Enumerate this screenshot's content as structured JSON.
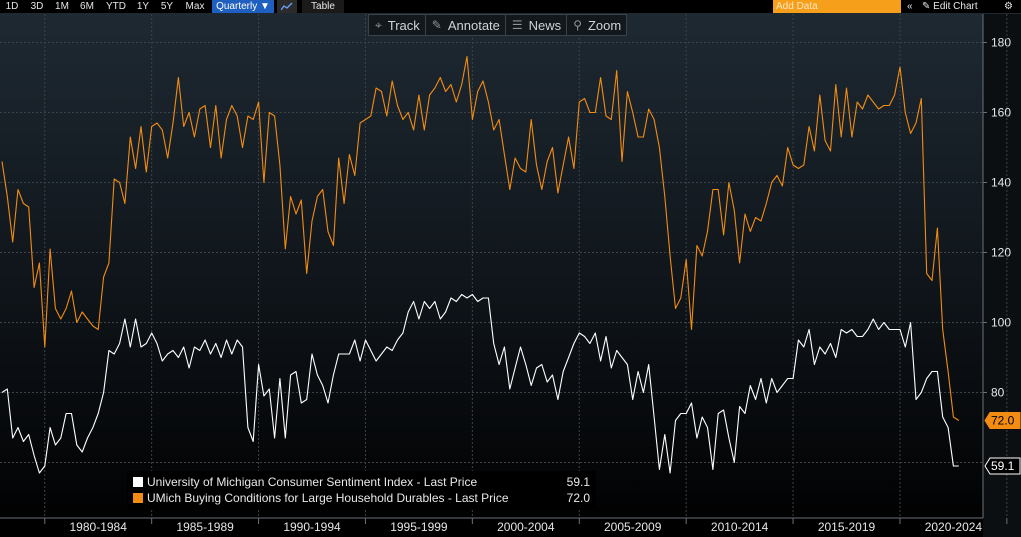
{
  "toolbar": {
    "ranges": [
      "1D",
      "3D",
      "1M",
      "6M",
      "YTD",
      "1Y",
      "5Y",
      "Max"
    ],
    "frequency": "Quarterly ▼",
    "chart_icon": "line-chart-icon",
    "table_label": "Table",
    "add_data_placeholder": "Add Data",
    "collapse_glyph": "«",
    "edit_chart_label": "✎ Edit Chart",
    "settings_glyph": "⚙"
  },
  "plot_toolbar": {
    "items": [
      {
        "icon": "crosshair-icon",
        "glyph": "⌖",
        "label": "Track"
      },
      {
        "icon": "pencil-icon",
        "glyph": "✎",
        "label": "Annotate"
      },
      {
        "icon": "news-icon",
        "glyph": "☰",
        "label": "News"
      },
      {
        "icon": "magnifier-icon",
        "glyph": "⚲",
        "label": "Zoom"
      }
    ]
  },
  "legend": {
    "items": [
      {
        "label": "University of Michigan Consumer Sentiment Index - Last Price",
        "value": "59.1",
        "color": "#ffffff"
      },
      {
        "label": "UMich Buying Conditions for Large Household Durables - Last Price",
        "value": "72.0",
        "color": "#f28c12"
      }
    ]
  },
  "chart_data": {
    "type": "line",
    "x_type": "quarterly",
    "start": "1978 Q1",
    "x_tick_labels": [
      "1980-1984",
      "1985-1989",
      "1990-1994",
      "1995-1999",
      "2000-2004",
      "2005-2009",
      "2010-2014",
      "2015-2019",
      "2020-2024"
    ],
    "y_axis": {
      "ticks": [
        80,
        100,
        120,
        140,
        160,
        180
      ],
      "range": [
        60,
        185
      ],
      "side": "right"
    },
    "grid": true,
    "series": [
      {
        "name": "University of Michigan Consumer Sentiment Index - Last Price",
        "color": "#ffffff",
        "last_value_label": "59.1",
        "values": [
          80,
          81,
          67,
          70,
          66,
          68,
          62,
          57,
          59,
          70,
          65,
          67,
          74,
          74,
          65,
          63,
          67,
          70,
          74,
          80,
          92,
          91,
          94,
          101,
          93,
          101,
          93,
          94,
          97,
          94,
          89,
          91,
          92,
          90,
          93,
          87,
          93,
          92,
          95,
          91,
          94,
          90,
          95,
          91,
          95,
          93,
          70,
          66,
          88,
          79,
          81,
          67,
          84,
          67,
          85,
          86,
          77,
          78,
          91,
          85,
          82,
          77,
          85,
          91,
          91,
          91,
          95,
          89,
          95,
          92,
          89,
          91,
          93,
          92,
          95,
          97,
          103,
          106,
          101,
          106,
          104,
          106,
          101,
          103,
          107,
          106,
          108,
          107,
          108,
          106,
          107,
          107,
          94,
          88,
          93,
          81,
          87,
          93,
          88,
          82,
          87,
          88,
          83,
          85,
          78,
          86,
          90,
          94,
          97,
          96,
          94,
          97,
          89,
          96,
          87,
          92,
          90,
          88,
          78,
          86,
          80,
          88,
          73,
          58,
          68,
          57,
          72,
          74,
          74,
          77,
          67,
          73,
          70,
          58,
          74,
          75,
          67,
          60,
          76,
          74,
          82,
          78,
          84,
          77,
          84,
          80,
          82,
          84,
          84,
          95,
          93,
          98,
          88,
          93,
          91,
          94,
          90,
          98,
          97,
          98,
          96,
          96,
          98,
          101,
          98,
          100,
          98,
          98,
          98,
          93,
          100,
          78,
          80,
          84,
          86,
          86,
          73,
          70,
          59,
          59
        ]
      },
      {
        "name": "UMich Buying Conditions for Large Household Durables - Last Price",
        "color": "#f28c12",
        "last_value_label": "72.0",
        "values": [
          146,
          136,
          123,
          138,
          134,
          133,
          110,
          117,
          93,
          121,
          104,
          101,
          104,
          109,
          100,
          103,
          101,
          99,
          98,
          113,
          117,
          141,
          140,
          134,
          153,
          144,
          156,
          143,
          156,
          157,
          155,
          147,
          157,
          170,
          156,
          160,
          153,
          161,
          162,
          150,
          162,
          147,
          158,
          162,
          159,
          150,
          159,
          158,
          163,
          140,
          160,
          159,
          145,
          121,
          136,
          131,
          135,
          114,
          129,
          136,
          138,
          126,
          122,
          147,
          134,
          148,
          142,
          157,
          158,
          159,
          167,
          166,
          159,
          169,
          162,
          158,
          160,
          155,
          165,
          155,
          165,
          167,
          170,
          166,
          168,
          163,
          168,
          176,
          158,
          166,
          169,
          163,
          155,
          158,
          148,
          138,
          147,
          144,
          143,
          158,
          145,
          138,
          146,
          150,
          137,
          145,
          153,
          144,
          163,
          164,
          160,
          160,
          170,
          159,
          158,
          172,
          146,
          166,
          160,
          153,
          153,
          161,
          158,
          150,
          136,
          119,
          104,
          107,
          118,
          98,
          122,
          119,
          126,
          138,
          138,
          125,
          140,
          132,
          117,
          131,
          126,
          130,
          129,
          134,
          140,
          142,
          139,
          150,
          145,
          144,
          145,
          156,
          149,
          165,
          152,
          149,
          168,
          153,
          167,
          153,
          163,
          161,
          165,
          163,
          161,
          162,
          162,
          165,
          173,
          160,
          154,
          157,
          164,
          114,
          112,
          127,
          98,
          86,
          73,
          72
        ]
      }
    ]
  }
}
